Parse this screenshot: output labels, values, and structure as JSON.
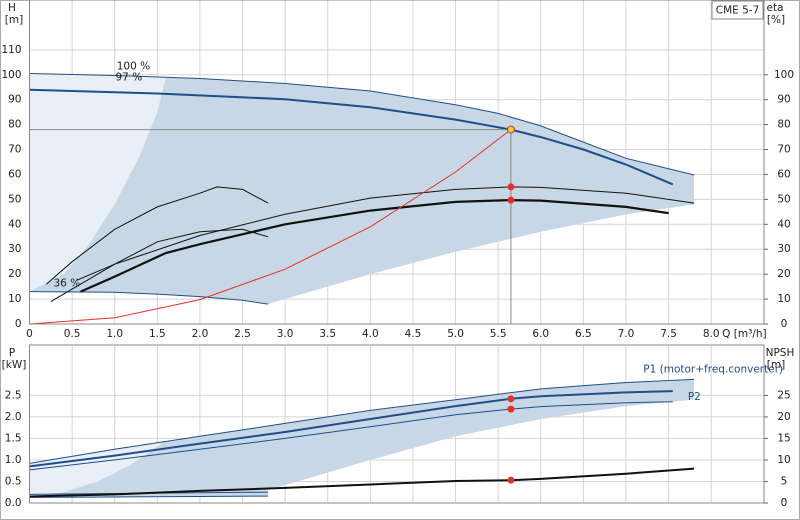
{
  "chart_data": [
    {
      "type": "line",
      "title": "CME 5-7",
      "y_label": "H",
      "y_unit": "[m]",
      "y2_label": "eta",
      "y2_unit": "[%]",
      "x_label": "Q [m³/h]",
      "xlim": [
        0,
        8.62
      ],
      "xticks": [
        0,
        0.5,
        {
          "value": 1,
          "label": "1.0"
        },
        1.5,
        {
          "value": 2,
          "label": "2.0"
        },
        2.5,
        {
          "value": 3,
          "label": "3.0"
        },
        3.5,
        {
          "value": 4,
          "label": "4.0"
        },
        4.5,
        {
          "value": 5,
          "label": "5.0"
        },
        5.5,
        {
          "value": 6,
          "label": "6.0"
        },
        6.5,
        {
          "value": 7,
          "label": "7.0"
        },
        7.5,
        {
          "value": 8,
          "label": "8.0"
        }
      ],
      "ylim": [
        0,
        130
      ],
      "yticks": [
        0,
        10,
        20,
        30,
        40,
        50,
        60,
        70,
        80,
        90,
        100,
        110
      ],
      "y2lim": [
        0,
        130
      ],
      "y2ticks": [
        0,
        10,
        20,
        30,
        40,
        50,
        60,
        70,
        80,
        90,
        100
      ],
      "grid": true,
      "series": [
        {
          "kind": "area",
          "color": "#c8d7e6",
          "x": [
            0,
            1,
            2,
            3,
            4,
            5,
            5.5,
            6,
            6.5,
            7,
            7.8,
            7.8,
            7,
            6,
            5,
            4,
            2.8,
            2.5,
            2,
            1.5,
            1,
            0
          ],
          "values": [
            100.5,
            99.7,
            98.5,
            96.5,
            93.5,
            88,
            84.5,
            79.5,
            73,
            66.5,
            59.8,
            48,
            44,
            37,
            29,
            20,
            8,
            9.5,
            11,
            12,
            12.7,
            13
          ]
        },
        {
          "kind": "area",
          "color": "#e8eff7",
          "x": [
            0,
            1.6,
            1.5,
            1.3,
            1,
            0.7,
            0.4,
            0
          ],
          "values": [
            100.5,
            99,
            85,
            68,
            48,
            32,
            20,
            13
          ]
        },
        {
          "kind": "line",
          "name": "100 %",
          "color": "#1f4e8c",
          "width": 1,
          "x": [
            0,
            1,
            2,
            3,
            4,
            5,
            5.5,
            6,
            6.5,
            7,
            7.8
          ],
          "values": [
            100.5,
            99.7,
            98.5,
            96.5,
            93.5,
            88,
            84.5,
            79.5,
            73,
            66.5,
            59.8
          ]
        },
        {
          "kind": "line",
          "name": "97 %",
          "color": "#1f4e8c",
          "width": 2,
          "x": [
            0,
            1.5,
            3,
            4,
            5,
            5.65,
            6,
            6.5,
            7,
            7.55
          ],
          "values": [
            94,
            92.5,
            90.2,
            87,
            82,
            78,
            75,
            70,
            64,
            56
          ]
        },
        {
          "kind": "line",
          "name": "36 %",
          "color": "#1f4e8c",
          "width": 1,
          "x": [
            0,
            1,
            1.5,
            2,
            2.5,
            2.8
          ],
          "values": [
            13,
            12.7,
            12,
            11,
            9.5,
            8
          ]
        },
        {
          "kind": "line",
          "axis": "y2",
          "color": "#111",
          "width": 1,
          "x": [
            0.55,
            1,
            2,
            3,
            4,
            5,
            5.65,
            6,
            7,
            7.8
          ],
          "values": [
            17.5,
            24,
            35.5,
            44,
            50.5,
            54,
            55,
            54.8,
            52.5,
            48.5
          ]
        },
        {
          "kind": "line",
          "axis": "y2",
          "color": "#111",
          "width": 2.2,
          "x": [
            0.6,
            1,
            1.6,
            2,
            3,
            4,
            5,
            5.65,
            6,
            7,
            7.5
          ],
          "values": [
            13,
            19,
            28.5,
            32,
            40,
            45.5,
            49,
            49.7,
            49.5,
            47,
            44.5
          ]
        },
        {
          "kind": "line",
          "axis": "y2",
          "color": "#111",
          "width": 1,
          "x": [
            0.2,
            0.5,
            1,
            1.5,
            2,
            2.2,
            2.5,
            2.8
          ],
          "values": [
            16,
            25,
            38,
            47,
            52.5,
            55,
            54,
            48.5
          ]
        },
        {
          "kind": "line",
          "axis": "y2",
          "color": "#111",
          "width": 1,
          "x": [
            0.25,
            1,
            1.5,
            2,
            2.5,
            2.8
          ],
          "values": [
            9,
            24,
            33,
            37,
            38,
            35
          ]
        },
        {
          "kind": "line",
          "color": "#e8302a",
          "width": 1,
          "x": [
            0,
            1,
            2,
            3,
            4,
            5,
            5.65
          ],
          "values": [
            0,
            2.5,
            9.8,
            22,
            39,
            61,
            78
          ]
        },
        {
          "kind": "point",
          "axis": "y2",
          "color": "#e8302a",
          "x": [
            5.65,
            5.65
          ],
          "values": [
            55,
            49.7
          ]
        }
      ],
      "duty_point": {
        "x": 5.65,
        "y": 78,
        "color": "#f5c842"
      }
    },
    {
      "type": "line",
      "y_label": "P",
      "y_unit": "[kW]",
      "y2_label": "NPSH",
      "y2_unit": "[m]",
      "xlim": [
        0,
        8.62
      ],
      "ylim": [
        0,
        3.67
      ],
      "yticks": [
        {
          "value": 0,
          "label": "0.0"
        },
        0.5,
        {
          "value": 1,
          "label": "1.0"
        },
        1.5,
        {
          "value": 2,
          "label": "2.0"
        },
        2.5
      ],
      "y2lim": [
        0,
        36.7
      ],
      "y2ticks": [
        0,
        5,
        10,
        15,
        20,
        25
      ],
      "grid": true,
      "series": [
        {
          "kind": "area",
          "color": "#c8d7e6",
          "x": [
            0,
            1,
            2,
            3,
            4,
            5,
            6,
            7,
            7.8,
            7.8,
            7,
            6,
            5,
            4,
            2.8,
            2.8,
            0
          ],
          "values": [
            0.92,
            1.25,
            1.55,
            1.85,
            2.15,
            2.4,
            2.65,
            2.8,
            2.87,
            2.4,
            2.25,
            1.95,
            1.55,
            1,
            0.3,
            0.15,
            0.15
          ]
        },
        {
          "kind": "area",
          "color": "#e8eff7",
          "x": [
            0,
            1.6,
            1.2,
            0.8,
            0.4,
            0
          ],
          "values": [
            0.92,
            1.45,
            0.9,
            0.5,
            0.25,
            0.15
          ]
        },
        {
          "kind": "line",
          "name": "P1 (motor+freq.converter)",
          "color": "#1f4e8c",
          "width": 1,
          "x": [
            0,
            1,
            2,
            3,
            4,
            5,
            6,
            7,
            7.8
          ],
          "values": [
            0.92,
            1.25,
            1.55,
            1.85,
            2.15,
            2.4,
            2.65,
            2.8,
            2.87
          ]
        },
        {
          "kind": "line",
          "name": "P2",
          "color": "#1f4e8c",
          "width": 2,
          "x": [
            0,
            1,
            2,
            3,
            4,
            5,
            5.65,
            6,
            7,
            7.55
          ],
          "values": [
            0.85,
            1.1,
            1.38,
            1.65,
            1.95,
            2.25,
            2.42,
            2.48,
            2.57,
            2.6
          ]
        },
        {
          "kind": "line",
          "color": "#1f4e8c",
          "width": 1,
          "x": [
            0,
            1,
            2,
            3,
            4,
            5,
            5.65,
            6,
            7,
            7.55
          ],
          "values": [
            0.77,
            1,
            1.25,
            1.5,
            1.77,
            2.05,
            2.18,
            2.24,
            2.33,
            2.35
          ]
        },
        {
          "kind": "line",
          "color": "#1f4e8c",
          "width": 1,
          "x": [
            0,
            1,
            2,
            2.8
          ],
          "values": [
            0.2,
            0.22,
            0.24,
            0.25
          ]
        },
        {
          "kind": "line",
          "color": "#1f4e8c",
          "width": 1,
          "x": [
            0,
            1,
            2,
            2.8
          ],
          "values": [
            0.13,
            0.14,
            0.15,
            0.16
          ]
        },
        {
          "kind": "line",
          "axis": "y2",
          "color": "#111",
          "width": 2,
          "x": [
            0,
            1,
            2,
            3,
            4,
            5,
            5.65,
            6,
            7,
            7.8
          ],
          "values": [
            1.5,
            2,
            2.8,
            3.5,
            4.3,
            5.1,
            5.3,
            5.6,
            6.8,
            8
          ]
        },
        {
          "kind": "point",
          "color": "#e8302a",
          "x": [
            5.65,
            5.65
          ],
          "values": [
            2.42,
            2.18
          ]
        },
        {
          "kind": "point",
          "axis": "y2",
          "color": "#e8302a",
          "x": [
            5.65
          ],
          "values": [
            5.3
          ]
        }
      ]
    }
  ]
}
